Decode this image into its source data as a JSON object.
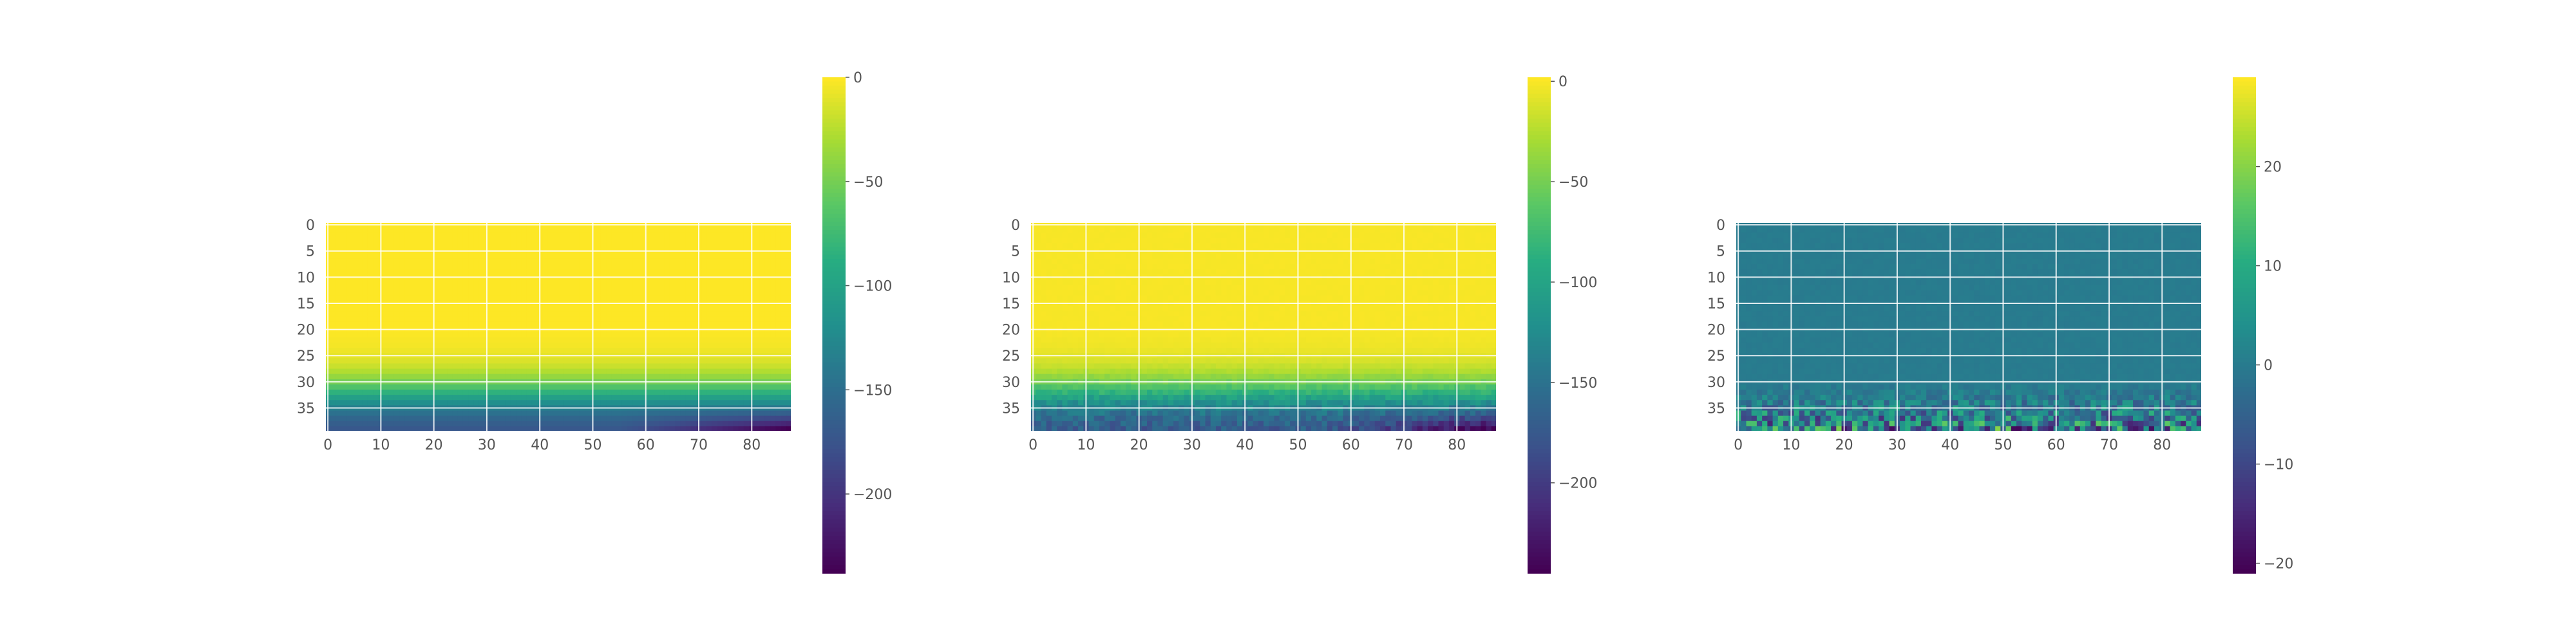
{
  "chart_data": [
    {
      "type": "heatmap",
      "title": "",
      "xlabel": "",
      "ylabel": "",
      "grid": true,
      "n_rows": 40,
      "n_cols": 88,
      "xlim": [
        0,
        87
      ],
      "ylim": [
        39,
        0
      ],
      "x_ticks": [
        0,
        10,
        20,
        30,
        40,
        50,
        60,
        70,
        80
      ],
      "y_ticks": [
        0,
        5,
        10,
        15,
        20,
        25,
        30,
        35
      ],
      "row_profile": [
        0,
        0,
        0,
        0,
        0,
        0,
        0,
        0,
        0,
        0,
        0,
        0,
        0,
        0,
        0,
        0,
        0,
        0,
        0,
        0,
        0,
        -1,
        -2,
        -3,
        -5,
        -8,
        -12,
        -18,
        -26,
        -37,
        -50,
        -66,
        -84,
        -103,
        -120,
        -135,
        -148,
        -158,
        -166,
        -172
      ],
      "bottom_right_min": -238,
      "noise_amplitude": 0,
      "colorbar": {
        "min": -238,
        "max": 0,
        "ticks": [
          0,
          -50,
          -100,
          -150,
          -200
        ],
        "tick_labels": [
          "0",
          "−50",
          "−100",
          "−150",
          "−200"
        ],
        "colormap": "viridis"
      }
    },
    {
      "type": "heatmap",
      "title": "",
      "xlabel": "",
      "ylabel": "",
      "grid": true,
      "n_rows": 40,
      "n_cols": 88,
      "xlim": [
        0,
        87
      ],
      "ylim": [
        39,
        0
      ],
      "x_ticks": [
        0,
        10,
        20,
        30,
        40,
        50,
        60,
        70,
        80
      ],
      "y_ticks": [
        0,
        5,
        10,
        15,
        20,
        25,
        30,
        35
      ],
      "row_profile": [
        0,
        0,
        0,
        0,
        0,
        0,
        0,
        0,
        0,
        0,
        0,
        0,
        0,
        0,
        0,
        0,
        0,
        0,
        0,
        0,
        0,
        -1,
        -2,
        -3,
        -5,
        -8,
        -12,
        -18,
        -26,
        -37,
        -50,
        -66,
        -84,
        -103,
        -120,
        -135,
        -148,
        -158,
        -166,
        -172
      ],
      "bottom_right_min": -245,
      "noise_amplitude": 0.6,
      "colorbar": {
        "min": -245,
        "max": 2,
        "ticks": [
          0,
          -50,
          -100,
          -150,
          -200
        ],
        "tick_labels": [
          "0",
          "−50",
          "−100",
          "−150",
          "−200"
        ],
        "colormap": "viridis"
      }
    },
    {
      "type": "heatmap",
      "title": "",
      "xlabel": "",
      "ylabel": "",
      "grid": true,
      "n_rows": 40,
      "n_cols": 88,
      "xlim": [
        0,
        87
      ],
      "ylim": [
        39,
        0
      ],
      "x_ticks": [
        0,
        10,
        20,
        30,
        40,
        50,
        60,
        70,
        80
      ],
      "y_ticks": [
        0,
        5,
        10,
        15,
        20,
        25,
        30,
        35
      ],
      "background_value": 0,
      "residual_start_row": 30,
      "residual_amplitude": 20,
      "colorbar": {
        "min": -21,
        "max": 29,
        "ticks": [
          20,
          10,
          0,
          -10,
          -20
        ],
        "tick_labels": [
          "20",
          "10",
          "0",
          "−10",
          "−20"
        ],
        "colormap": "viridis"
      }
    }
  ]
}
